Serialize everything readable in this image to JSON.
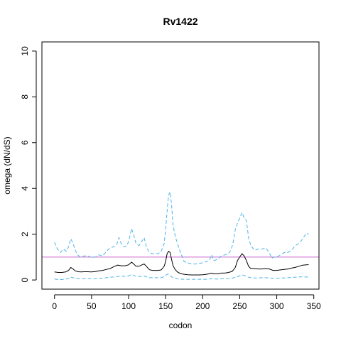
{
  "chart_data": {
    "type": "line",
    "title": "Rv1422",
    "xlabel": "codon",
    "ylabel": "omega (dN/dS)",
    "xlim": [
      -17,
      357
    ],
    "ylim": [
      -0.4,
      10.4
    ],
    "x_ticks": [
      0,
      50,
      100,
      150,
      200,
      250,
      300,
      350
    ],
    "y_ticks": [
      0,
      2,
      4,
      6,
      8,
      10
    ],
    "reference_line": {
      "y": 1,
      "color": "#cc66cc"
    },
    "series": [
      {
        "color": "#4db3e6",
        "style": "dashed",
        "points": [
          [
            0,
            1.65
          ],
          [
            4,
            1.35
          ],
          [
            8,
            1.2
          ],
          [
            12,
            1.35
          ],
          [
            16,
            1.25
          ],
          [
            19,
            1.45
          ],
          [
            22,
            1.8
          ],
          [
            25,
            1.6
          ],
          [
            28,
            1.3
          ],
          [
            31,
            1.1
          ],
          [
            35,
            1.0
          ],
          [
            40,
            1.05
          ],
          [
            45,
            1.05
          ],
          [
            50,
            0.98
          ],
          [
            55,
            1.0
          ],
          [
            60,
            1.1
          ],
          [
            65,
            1.05
          ],
          [
            70,
            1.25
          ],
          [
            75,
            1.4
          ],
          [
            80,
            1.45
          ],
          [
            84,
            1.55
          ],
          [
            87,
            1.85
          ],
          [
            90,
            1.6
          ],
          [
            94,
            1.45
          ],
          [
            98,
            1.5
          ],
          [
            101,
            1.8
          ],
          [
            104,
            2.25
          ],
          [
            107,
            1.95
          ],
          [
            110,
            1.6
          ],
          [
            114,
            1.5
          ],
          [
            118,
            1.7
          ],
          [
            121,
            1.85
          ],
          [
            124,
            1.45
          ],
          [
            128,
            1.2
          ],
          [
            132,
            1.15
          ],
          [
            136,
            1.15
          ],
          [
            140,
            1.15
          ],
          [
            144,
            1.25
          ],
          [
            148,
            1.6
          ],
          [
            150,
            2.2
          ],
          [
            152,
            3.0
          ],
          [
            154,
            3.7
          ],
          [
            156,
            3.85
          ],
          [
            158,
            3.3
          ],
          [
            160,
            2.4
          ],
          [
            163,
            1.9
          ],
          [
            166,
            1.6
          ],
          [
            170,
            1.2
          ],
          [
            175,
            0.8
          ],
          [
            180,
            0.75
          ],
          [
            185,
            0.7
          ],
          [
            190,
            0.7
          ],
          [
            195,
            0.72
          ],
          [
            200,
            0.75
          ],
          [
            205,
            0.8
          ],
          [
            209,
            0.85
          ],
          [
            212,
            1.1
          ],
          [
            215,
            0.85
          ],
          [
            220,
            0.9
          ],
          [
            225,
            1.05
          ],
          [
            230,
            1.1
          ],
          [
            235,
            1.15
          ],
          [
            238,
            1.3
          ],
          [
            241,
            1.6
          ],
          [
            244,
            2.2
          ],
          [
            247,
            2.5
          ],
          [
            250,
            2.7
          ],
          [
            253,
            2.95
          ],
          [
            256,
            2.7
          ],
          [
            259,
            2.6
          ],
          [
            262,
            1.85
          ],
          [
            265,
            1.5
          ],
          [
            270,
            1.3
          ],
          [
            275,
            1.35
          ],
          [
            280,
            1.35
          ],
          [
            285,
            1.4
          ],
          [
            290,
            1.2
          ],
          [
            293,
            0.95
          ],
          [
            296,
            1.0
          ],
          [
            300,
            1.0
          ],
          [
            305,
            1.1
          ],
          [
            310,
            1.2
          ],
          [
            315,
            1.2
          ],
          [
            320,
            1.3
          ],
          [
            325,
            1.5
          ],
          [
            330,
            1.6
          ],
          [
            335,
            1.8
          ],
          [
            340,
            2.05
          ],
          [
            343,
            2.0
          ]
        ]
      },
      {
        "color": "#000000",
        "style": "solid",
        "points": [
          [
            0,
            0.35
          ],
          [
            5,
            0.33
          ],
          [
            10,
            0.33
          ],
          [
            15,
            0.35
          ],
          [
            19,
            0.42
          ],
          [
            22,
            0.55
          ],
          [
            25,
            0.48
          ],
          [
            28,
            0.4
          ],
          [
            32,
            0.36
          ],
          [
            36,
            0.35
          ],
          [
            40,
            0.36
          ],
          [
            45,
            0.36
          ],
          [
            50,
            0.35
          ],
          [
            55,
            0.37
          ],
          [
            60,
            0.4
          ],
          [
            65,
            0.42
          ],
          [
            70,
            0.46
          ],
          [
            75,
            0.5
          ],
          [
            80,
            0.58
          ],
          [
            85,
            0.65
          ],
          [
            90,
            0.62
          ],
          [
            95,
            0.62
          ],
          [
            100,
            0.66
          ],
          [
            104,
            0.78
          ],
          [
            107,
            0.7
          ],
          [
            110,
            0.6
          ],
          [
            114,
            0.6
          ],
          [
            118,
            0.66
          ],
          [
            121,
            0.7
          ],
          [
            124,
            0.6
          ],
          [
            128,
            0.45
          ],
          [
            132,
            0.42
          ],
          [
            136,
            0.42
          ],
          [
            140,
            0.42
          ],
          [
            144,
            0.44
          ],
          [
            148,
            0.6
          ],
          [
            150,
            0.8
          ],
          [
            152,
            1.15
          ],
          [
            154,
            1.25
          ],
          [
            156,
            1.2
          ],
          [
            158,
            0.9
          ],
          [
            160,
            0.62
          ],
          [
            163,
            0.45
          ],
          [
            166,
            0.35
          ],
          [
            170,
            0.28
          ],
          [
            175,
            0.25
          ],
          [
            180,
            0.23
          ],
          [
            185,
            0.22
          ],
          [
            190,
            0.22
          ],
          [
            195,
            0.22
          ],
          [
            200,
            0.23
          ],
          [
            205,
            0.25
          ],
          [
            209,
            0.27
          ],
          [
            212,
            0.3
          ],
          [
            215,
            0.27
          ],
          [
            220,
            0.27
          ],
          [
            225,
            0.3
          ],
          [
            230,
            0.3
          ],
          [
            235,
            0.33
          ],
          [
            240,
            0.38
          ],
          [
            244,
            0.55
          ],
          [
            247,
            0.85
          ],
          [
            250,
            1.0
          ],
          [
            253,
            1.15
          ],
          [
            256,
            1.05
          ],
          [
            259,
            0.85
          ],
          [
            262,
            0.6
          ],
          [
            265,
            0.5
          ],
          [
            270,
            0.5
          ],
          [
            275,
            0.48
          ],
          [
            280,
            0.48
          ],
          [
            285,
            0.5
          ],
          [
            290,
            0.48
          ],
          [
            295,
            0.42
          ],
          [
            300,
            0.42
          ],
          [
            305,
            0.44
          ],
          [
            310,
            0.46
          ],
          [
            315,
            0.48
          ],
          [
            320,
            0.52
          ],
          [
            325,
            0.55
          ],
          [
            330,
            0.6
          ],
          [
            335,
            0.65
          ],
          [
            340,
            0.66
          ],
          [
            343,
            0.67
          ]
        ]
      },
      {
        "color": "#4db3e6",
        "style": "dashed",
        "points": [
          [
            0,
            0.04
          ],
          [
            5,
            0.02
          ],
          [
            10,
            0.02
          ],
          [
            15,
            0.04
          ],
          [
            20,
            0.06
          ],
          [
            22,
            0.12
          ],
          [
            25,
            0.1
          ],
          [
            30,
            0.06
          ],
          [
            35,
            0.05
          ],
          [
            40,
            0.05
          ],
          [
            45,
            0.06
          ],
          [
            50,
            0.06
          ],
          [
            55,
            0.06
          ],
          [
            60,
            0.07
          ],
          [
            65,
            0.08
          ],
          [
            70,
            0.1
          ],
          [
            75,
            0.12
          ],
          [
            80,
            0.13
          ],
          [
            85,
            0.15
          ],
          [
            90,
            0.17
          ],
          [
            95,
            0.16
          ],
          [
            100,
            0.18
          ],
          [
            104,
            0.24
          ],
          [
            107,
            0.2
          ],
          [
            110,
            0.16
          ],
          [
            115,
            0.15
          ],
          [
            120,
            0.18
          ],
          [
            124,
            0.14
          ],
          [
            128,
            0.1
          ],
          [
            132,
            0.1
          ],
          [
            136,
            0.1
          ],
          [
            140,
            0.1
          ],
          [
            144,
            0.1
          ],
          [
            148,
            0.15
          ],
          [
            152,
            0.25
          ],
          [
            154,
            0.26
          ],
          [
            156,
            0.2
          ],
          [
            158,
            0.14
          ],
          [
            160,
            0.1
          ],
          [
            165,
            0.06
          ],
          [
            170,
            0.04
          ],
          [
            175,
            0.03
          ],
          [
            180,
            0.03
          ],
          [
            190,
            0.03
          ],
          [
            200,
            0.03
          ],
          [
            205,
            0.03
          ],
          [
            210,
            0.04
          ],
          [
            212,
            0.06
          ],
          [
            215,
            0.04
          ],
          [
            220,
            0.04
          ],
          [
            225,
            0.05
          ],
          [
            230,
            0.05
          ],
          [
            235,
            0.06
          ],
          [
            240,
            0.08
          ],
          [
            245,
            0.12
          ],
          [
            248,
            0.16
          ],
          [
            251,
            0.2
          ],
          [
            253,
            0.22
          ],
          [
            256,
            0.2
          ],
          [
            259,
            0.16
          ],
          [
            262,
            0.12
          ],
          [
            265,
            0.1
          ],
          [
            270,
            0.09
          ],
          [
            275,
            0.09
          ],
          [
            280,
            0.1
          ],
          [
            285,
            0.1
          ],
          [
            290,
            0.09
          ],
          [
            295,
            0.07
          ],
          [
            300,
            0.07
          ],
          [
            305,
            0.08
          ],
          [
            310,
            0.09
          ],
          [
            315,
            0.1
          ],
          [
            320,
            0.11
          ],
          [
            325,
            0.12
          ],
          [
            330,
            0.13
          ],
          [
            335,
            0.14
          ],
          [
            340,
            0.13
          ],
          [
            343,
            0.12
          ]
        ]
      }
    ]
  }
}
